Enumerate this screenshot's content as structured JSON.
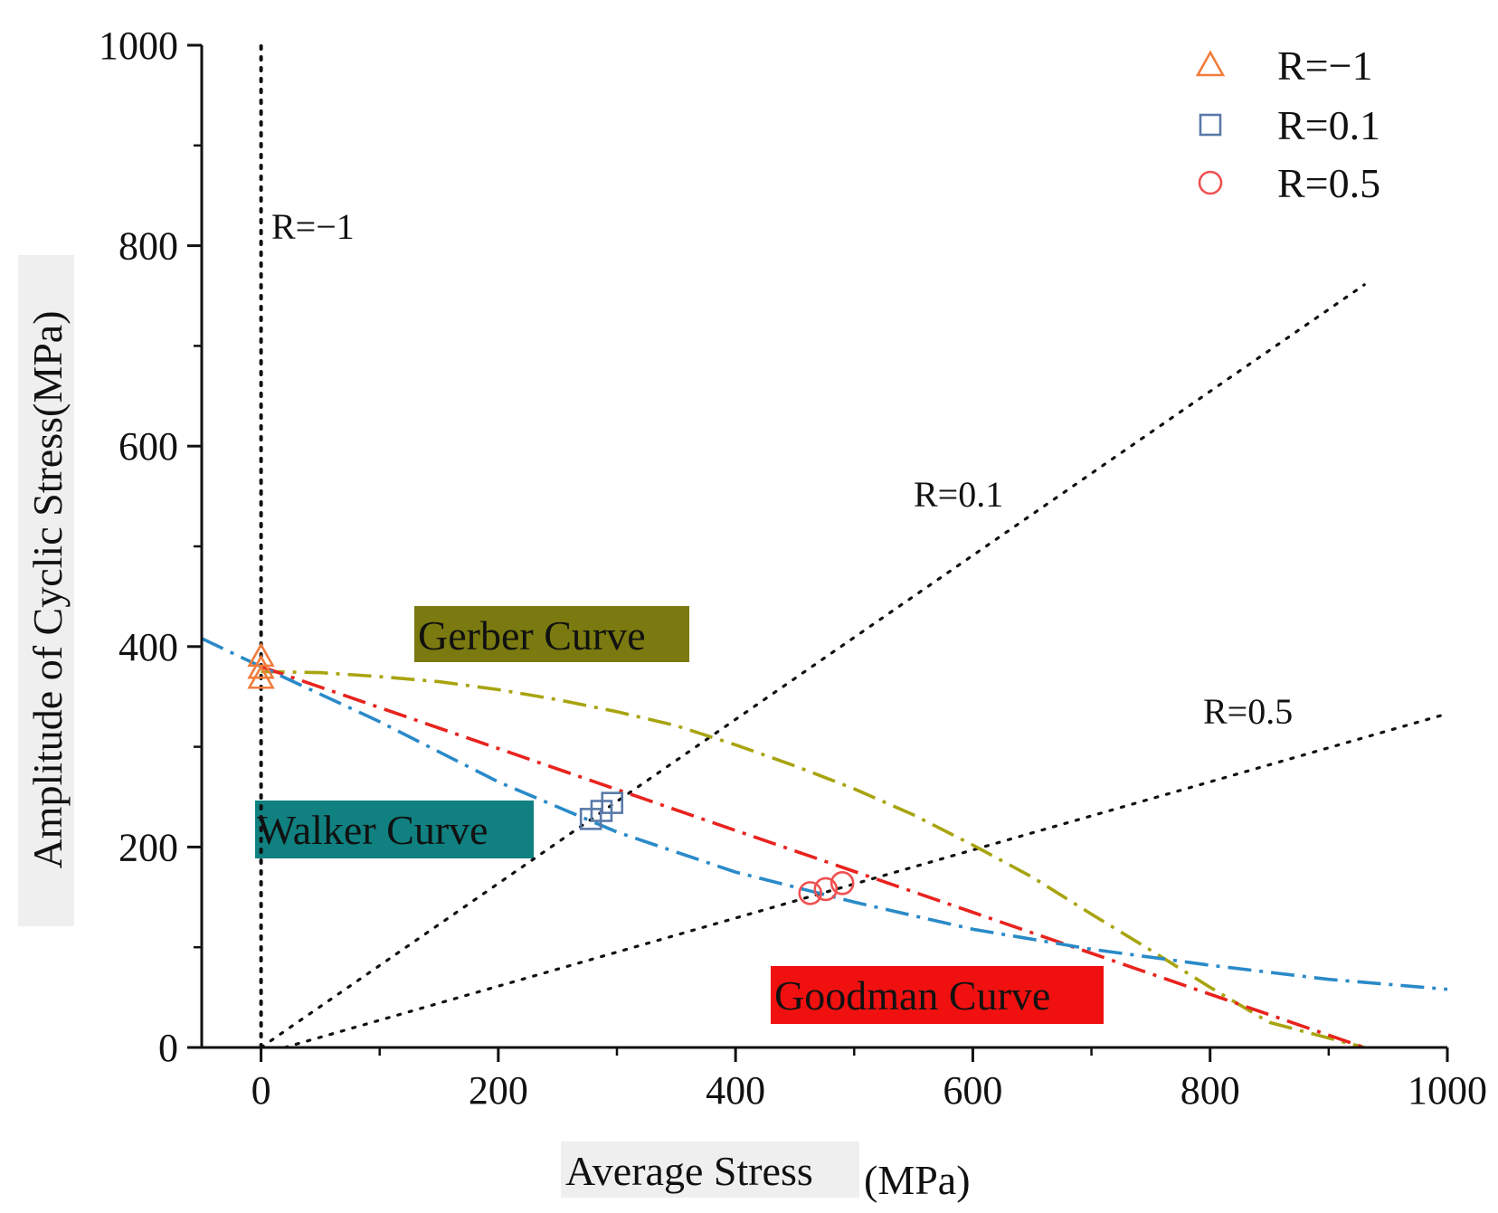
{
  "chart_data": {
    "type": "scatter",
    "title": "",
    "xlabel": "Average Stress",
    "xlabel_unit": "(MPa)",
    "ylabel": "Amplitude of Cyclic Stress(MPa)",
    "xlim": [
      -50,
      1000
    ],
    "ylim": [
      0,
      1000
    ],
    "x_ticks": [
      0,
      200,
      400,
      600,
      800,
      1000
    ],
    "y_ticks": [
      0,
      200,
      400,
      600,
      800,
      1000
    ],
    "legend_position": "top-right",
    "series": [
      {
        "name": "R=−1",
        "marker": "triangle",
        "color": "#f07c3c",
        "points": [
          [
            0,
            390
          ],
          [
            0,
            378
          ],
          [
            0,
            368
          ]
        ]
      },
      {
        "name": "R=0.1",
        "marker": "square",
        "color": "#5a7aa8",
        "points": [
          [
            278,
            228
          ],
          [
            287,
            236
          ],
          [
            296,
            244
          ]
        ]
      },
      {
        "name": "R=0.5",
        "marker": "circle",
        "color": "#f05050",
        "points": [
          [
            463,
            154
          ],
          [
            476,
            158
          ],
          [
            490,
            164
          ]
        ]
      }
    ],
    "curves": [
      {
        "name": "Gerber Curve",
        "color": "#a8a410",
        "style": "dash-dot",
        "label_bg": "#7a7a10",
        "points": [
          [
            0,
            375
          ],
          [
            50,
            374
          ],
          [
            100,
            370
          ],
          [
            150,
            365
          ],
          [
            200,
            357
          ],
          [
            250,
            347
          ],
          [
            300,
            335
          ],
          [
            350,
            321
          ],
          [
            400,
            302
          ],
          [
            450,
            281
          ],
          [
            500,
            258
          ],
          [
            550,
            232
          ],
          [
            600,
            202
          ],
          [
            650,
            170
          ],
          [
            700,
            133
          ],
          [
            750,
            97
          ],
          [
            800,
            60
          ],
          [
            850,
            25
          ],
          [
            930,
            0
          ]
        ]
      },
      {
        "name": "Goodman Curve",
        "color": "#e8231e",
        "style": "dash-dot",
        "label_bg": "#f01010",
        "points": [
          [
            0,
            380
          ],
          [
            930,
            0
          ]
        ]
      },
      {
        "name": "Walker Curve",
        "color": "#2a8ac8",
        "style": "dash-dot",
        "label_bg": "#108080",
        "points": [
          [
            -50,
            408
          ],
          [
            0,
            380
          ],
          [
            100,
            325
          ],
          [
            200,
            265
          ],
          [
            300,
            215
          ],
          [
            400,
            175
          ],
          [
            500,
            145
          ],
          [
            600,
            118
          ],
          [
            700,
            98
          ],
          [
            800,
            82
          ],
          [
            900,
            68
          ],
          [
            1000,
            58
          ]
        ]
      }
    ],
    "reference_lines": [
      {
        "label": "R=−1",
        "points": [
          [
            0,
            0
          ],
          [
            0,
            1000
          ]
        ]
      },
      {
        "label": "R=0.1",
        "points": [
          [
            0,
            0
          ],
          [
            930,
            761
          ]
        ]
      },
      {
        "label": "R=0.5",
        "points": [
          [
            20,
            0
          ],
          [
            1000,
            333
          ]
        ]
      }
    ]
  }
}
